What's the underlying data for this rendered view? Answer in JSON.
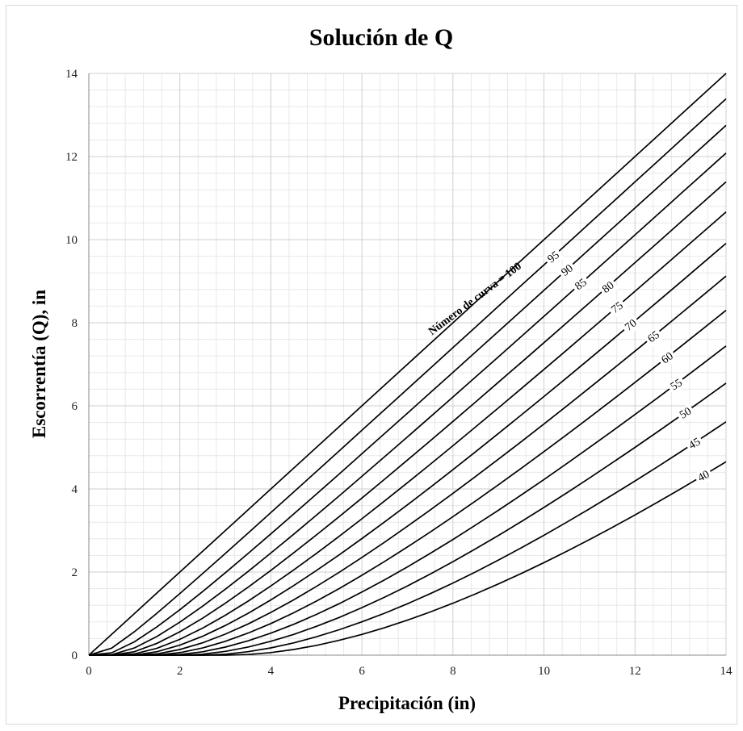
{
  "chart_data": {
    "type": "line",
    "title": "Solución de Q",
    "xlabel": "Precipitación (in)",
    "ylabel": "Escorrentía (Q), in",
    "xlim": [
      0,
      14
    ],
    "ylim": [
      0,
      14
    ],
    "xticks": [
      "0",
      "2",
      "4",
      "6",
      "8",
      "10",
      "12",
      "14"
    ],
    "yticks": [
      "0",
      "2",
      "4",
      "6",
      "8",
      "10",
      "12",
      "14"
    ],
    "grid": true,
    "minor_grid": true,
    "x": [
      0,
      0.5,
      1,
      1.5,
      2,
      2.5,
      3,
      3.5,
      4,
      4.5,
      5,
      5.5,
      6,
      6.5,
      7,
      7.5,
      8,
      8.5,
      9,
      9.5,
      10,
      10.5,
      11,
      11.5,
      12,
      12.5,
      13,
      13.5,
      14
    ],
    "series": [
      {
        "name": "100",
        "label": "Número de curva = 100",
        "curve_number": 100
      },
      {
        "name": "95",
        "label": "95",
        "curve_number": 95
      },
      {
        "name": "90",
        "label": "90",
        "curve_number": 90
      },
      {
        "name": "85",
        "label": "85",
        "curve_number": 85
      },
      {
        "name": "80",
        "label": "80",
        "curve_number": 80
      },
      {
        "name": "75",
        "label": "75",
        "curve_number": 75
      },
      {
        "name": "70",
        "label": "70",
        "curve_number": 70
      },
      {
        "name": "65",
        "label": "65",
        "curve_number": 65
      },
      {
        "name": "60",
        "label": "60",
        "curve_number": 60
      },
      {
        "name": "55",
        "label": "55",
        "curve_number": 55
      },
      {
        "name": "50",
        "label": "50",
        "curve_number": 50
      },
      {
        "name": "45",
        "label": "45",
        "curve_number": 45
      },
      {
        "name": "40",
        "label": "40",
        "curve_number": 40
      }
    ],
    "label_positions": [
      {
        "series": "100",
        "x": 7.6,
        "rotate": -37
      },
      {
        "series": "95",
        "x": 10.2,
        "rotate": -37
      },
      {
        "series": "90",
        "x": 10.5,
        "rotate": -37
      },
      {
        "series": "85",
        "x": 10.8,
        "rotate": -37
      },
      {
        "series": "80",
        "x": 11.4,
        "rotate": -37
      },
      {
        "series": "75",
        "x": 11.6,
        "rotate": -37
      },
      {
        "series": "70",
        "x": 11.9,
        "rotate": -37
      },
      {
        "series": "65",
        "x": 12.4,
        "rotate": -37
      },
      {
        "series": "60",
        "x": 12.7,
        "rotate": -35
      },
      {
        "series": "55",
        "x": 12.9,
        "rotate": -33
      },
      {
        "series": "50",
        "x": 13.1,
        "rotate": -32
      },
      {
        "series": "45",
        "x": 13.3,
        "rotate": -30
      },
      {
        "series": "40",
        "x": 13.5,
        "rotate": -28
      }
    ]
  }
}
